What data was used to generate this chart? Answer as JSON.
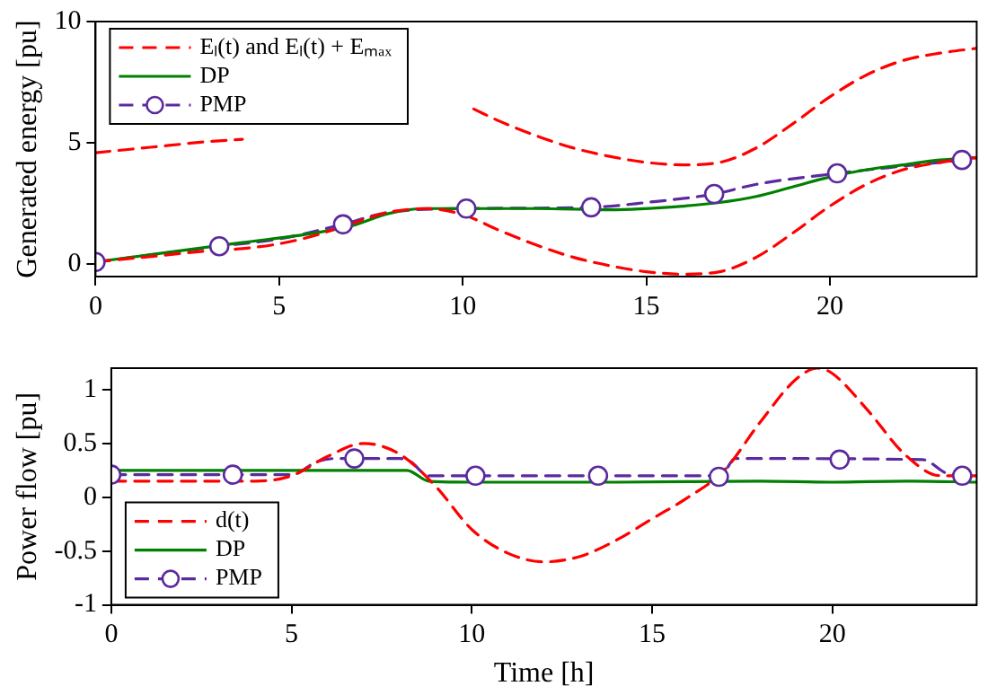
{
  "chart_data": [
    {
      "type": "line",
      "ylabel": "Generated energy [pu]",
      "xlim": [
        0,
        24
      ],
      "xticks": [
        0,
        5,
        10,
        15,
        20
      ],
      "ylim": [
        -0.5,
        10
      ],
      "yticks": [
        0,
        5,
        10
      ],
      "grid": false,
      "legend": "top left",
      "series": [
        {
          "name": "Eₗ(t) and Eₗ(t) + Eₘₐₓ",
          "color": "#ff0000",
          "line_style": "dashed",
          "x": [
            0,
            1,
            2,
            3,
            4,
            5,
            6,
            7,
            8,
            9,
            10,
            11,
            12,
            13,
            14,
            15,
            16,
            17,
            18,
            19,
            20,
            21,
            22,
            23,
            24
          ],
          "values": [
            0.1,
            0.25,
            0.4,
            0.55,
            0.65,
            0.85,
            1.2,
            1.7,
            2.15,
            2.3,
            2.05,
            1.4,
            0.8,
            0.3,
            -0.05,
            -0.3,
            -0.4,
            -0.3,
            0.3,
            1.3,
            2.4,
            3.3,
            3.9,
            4.2,
            4.4
          ]
        },
        {
          "color": "#ff0000",
          "line_style": "dashed",
          "x": [
            0,
            1,
            2,
            3,
            4,
            5,
            6,
            7,
            8,
            9,
            10.3,
            11,
            12,
            13,
            14,
            15,
            16,
            17,
            18,
            19,
            20,
            21,
            22,
            23,
            24
          ],
          "values": [
            4.6,
            4.75,
            4.9,
            5.05,
            5.15,
            null,
            null,
            null,
            null,
            null,
            6.4,
            5.9,
            5.3,
            4.8,
            4.45,
            4.2,
            4.1,
            4.2,
            4.8,
            5.8,
            6.9,
            7.8,
            8.4,
            8.7,
            8.9
          ]
        },
        {
          "name": "DP",
          "color": "#007f00",
          "line_style": "solid",
          "x": [
            0,
            2,
            4,
            6,
            7,
            8,
            9,
            10,
            12,
            14,
            16,
            17,
            18,
            19,
            20,
            21,
            22,
            23,
            24
          ],
          "values": [
            0.1,
            0.5,
            0.9,
            1.3,
            1.6,
            2.1,
            2.3,
            2.3,
            2.3,
            2.25,
            2.4,
            2.55,
            2.8,
            3.2,
            3.6,
            3.9,
            4.1,
            4.3,
            4.4
          ]
        },
        {
          "name": "PMP",
          "color": "#5b2a9e",
          "line_style": "dashed",
          "x": [
            0,
            3.37,
            5,
            6.74,
            8,
            10.1,
            13.5,
            15,
            16.85,
            18,
            20.2,
            22,
            23.6,
            24
          ],
          "values": [
            0.1,
            0.75,
            1.05,
            1.65,
            2.15,
            2.3,
            2.35,
            2.55,
            2.9,
            3.3,
            3.75,
            4.05,
            4.3,
            4.4
          ]
        },
        {
          "type": "scatter",
          "color": "#5b2a9e",
          "marker": "circle",
          "x": [
            0,
            3.37,
            6.74,
            10.1,
            13.5,
            16.85,
            20.2,
            23.6
          ],
          "values": [
            0.1,
            0.75,
            1.65,
            2.3,
            2.35,
            2.9,
            3.75,
            4.3
          ]
        }
      ]
    },
    {
      "type": "line",
      "xlabel": "Time [h]",
      "ylabel": "Power flow [pu]",
      "xlim": [
        0,
        24
      ],
      "xticks": [
        0,
        5,
        10,
        15,
        20
      ],
      "ylim": [
        -1,
        1.2
      ],
      "yticks": [
        -1,
        -0.5,
        0,
        0.5,
        1
      ],
      "grid": false,
      "legend": "bottom left",
      "series": [
        {
          "name": "d(t)",
          "color": "#ff0000",
          "line_style": "dashed",
          "x": [
            0,
            1,
            2,
            3,
            4,
            5,
            6,
            7,
            8,
            9,
            10,
            11,
            12,
            13,
            14,
            15,
            16,
            17,
            18,
            19,
            19.6,
            20,
            21,
            22,
            23,
            24
          ],
          "values": [
            0.15,
            0.15,
            0.15,
            0.15,
            0.15,
            0.2,
            0.38,
            0.5,
            0.4,
            0.1,
            -0.3,
            -0.52,
            -0.6,
            -0.55,
            -0.4,
            -0.2,
            0.0,
            0.25,
            0.7,
            1.1,
            1.2,
            1.15,
            0.8,
            0.4,
            0.2,
            0.2
          ]
        },
        {
          "name": "DP",
          "color": "#007f00",
          "line_style": "solid",
          "x": [
            0,
            4,
            6,
            8.2,
            8.8,
            10,
            14,
            18,
            20,
            22,
            24
          ],
          "values": [
            0.25,
            0.25,
            0.25,
            0.25,
            0.15,
            0.14,
            0.14,
            0.15,
            0.14,
            0.15,
            0.14
          ]
        },
        {
          "name": "PMP",
          "color": "#5b2a9e",
          "line_style": "dashed",
          "x": [
            0,
            5,
            5.7,
            6.2,
            8,
            8.3,
            8.8,
            16.9,
            17.3,
            22.5,
            23.2,
            24
          ],
          "values": [
            0.21,
            0.21,
            0.33,
            0.36,
            0.36,
            0.33,
            0.2,
            0.2,
            0.36,
            0.35,
            0.22,
            0.2
          ]
        },
        {
          "type": "scatter",
          "color": "#5b2a9e",
          "marker": "circle",
          "x": [
            0,
            3.37,
            6.74,
            10.1,
            13.5,
            16.85,
            20.2,
            23.6
          ],
          "values": [
            0.21,
            0.21,
            0.36,
            0.2,
            0.2,
            0.19,
            0.35,
            0.2
          ]
        }
      ]
    }
  ]
}
